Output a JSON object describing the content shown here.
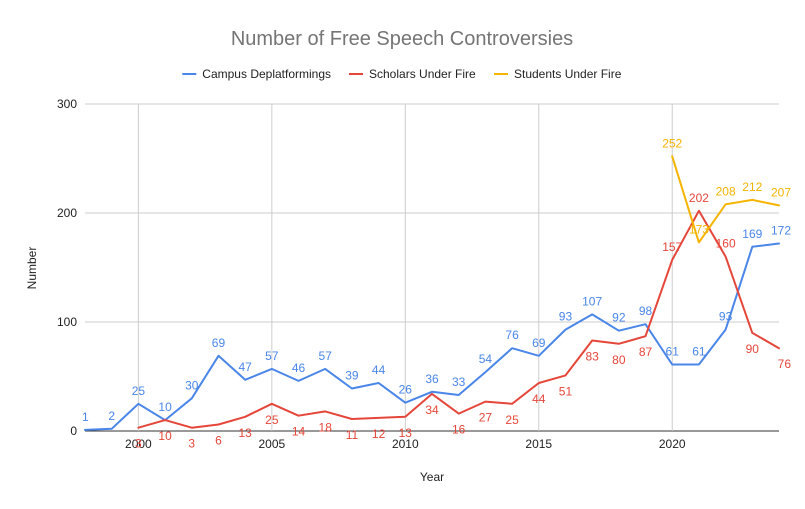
{
  "chart_data": {
    "type": "line",
    "title": "Number of Free Speech Controversies",
    "xlabel": "Year",
    "ylabel": "Number",
    "xlim": [
      1998,
      2024
    ],
    "ylim": [
      0,
      300
    ],
    "x_ticks": [
      2000,
      2005,
      2010,
      2015,
      2020
    ],
    "y_ticks": [
      0,
      100,
      200,
      300
    ],
    "grid": true,
    "legend_position": "top",
    "series": [
      {
        "name": "Campus Deplatformings",
        "color": "#4a86e8",
        "points": [
          [
            1998,
            1
          ],
          [
            1999,
            2
          ],
          [
            2000,
            25
          ],
          [
            2001,
            10
          ],
          [
            2002,
            30
          ],
          [
            2003,
            69
          ],
          [
            2004,
            47
          ],
          [
            2005,
            57
          ],
          [
            2006,
            46
          ],
          [
            2007,
            57
          ],
          [
            2008,
            39
          ],
          [
            2009,
            44
          ],
          [
            2010,
            26
          ],
          [
            2011,
            36
          ],
          [
            2012,
            33
          ],
          [
            2013,
            54
          ],
          [
            2014,
            76
          ],
          [
            2015,
            69
          ],
          [
            2016,
            93
          ],
          [
            2017,
            107
          ],
          [
            2018,
            92
          ],
          [
            2019,
            98
          ],
          [
            2020,
            61
          ],
          [
            2021,
            61
          ],
          [
            2022,
            93
          ],
          [
            2023,
            169
          ],
          [
            2024,
            172
          ]
        ]
      },
      {
        "name": "Scholars Under Fire",
        "color": "#e5463a",
        "points": [
          [
            2000,
            3
          ],
          [
            2001,
            10
          ],
          [
            2002,
            3
          ],
          [
            2003,
            6
          ],
          [
            2004,
            13
          ],
          [
            2005,
            25
          ],
          [
            2006,
            14
          ],
          [
            2007,
            18
          ],
          [
            2008,
            11
          ],
          [
            2009,
            12
          ],
          [
            2010,
            13
          ],
          [
            2011,
            34
          ],
          [
            2012,
            16
          ],
          [
            2013,
            27
          ],
          [
            2014,
            25
          ],
          [
            2015,
            44
          ],
          [
            2016,
            51
          ],
          [
            2017,
            83
          ],
          [
            2018,
            80
          ],
          [
            2019,
            87
          ],
          [
            2020,
            157
          ],
          [
            2021,
            202
          ],
          [
            2022,
            160
          ],
          [
            2023,
            90
          ],
          [
            2024,
            76
          ]
        ]
      },
      {
        "name": "Students Under Fire",
        "color": "#f4b400",
        "points": [
          [
            2020,
            252
          ],
          [
            2021,
            173
          ],
          [
            2022,
            208
          ],
          [
            2023,
            212
          ],
          [
            2024,
            207
          ]
        ]
      }
    ]
  }
}
